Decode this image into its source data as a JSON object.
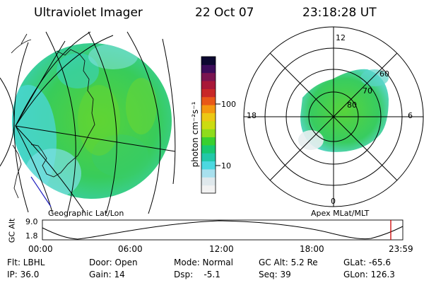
{
  "header": {
    "instrument": "Ultraviolet Imager",
    "date": "22 Oct 07",
    "time": "23:18:28 UT"
  },
  "colorbar": {
    "unit_label": "photon cm⁻²s⁻¹",
    "ticks": [
      "100",
      "10"
    ],
    "colors": [
      "#f2f2f2",
      "#dfe8ec",
      "#a8e0ee",
      "#4cd8e0",
      "#22c8a8",
      "#18c870",
      "#38d030",
      "#8edc1c",
      "#ccdc10",
      "#ecc814",
      "#f49810",
      "#e85818",
      "#c82828",
      "#a81838",
      "#7a1450",
      "#3c0c5a",
      "#0c0830"
    ]
  },
  "geo_panel": {
    "label": "Geographic Lat/Lon"
  },
  "polar_panel": {
    "label": "Apex MLat/MLT",
    "mlt_labels": {
      "top": "12",
      "left": "18",
      "right": "6",
      "bottom": "0"
    },
    "lat_labels": [
      "60",
      "70",
      "80"
    ]
  },
  "orbit_plot": {
    "ylabel": "GC Alt",
    "y_ticks": [
      "9.0",
      "1.8"
    ],
    "x_ticks": [
      "00:00",
      "06:00",
      "12:00",
      "18:00",
      "23:59"
    ],
    "marker_color": "#cc0000"
  },
  "status": {
    "flt": "Flt: LBHL",
    "door": "Door: Open",
    "mode": "Mode: Normal",
    "gc_alt": "GC Alt: 5.2 Re",
    "glat": "GLat: -65.6",
    "ip": "IP: 36.0",
    "gain": "Gain: 14",
    "dsp": "Dsp:    -5.1",
    "seq": "Seq: 39",
    "glon": "GLon: 126.3"
  }
}
